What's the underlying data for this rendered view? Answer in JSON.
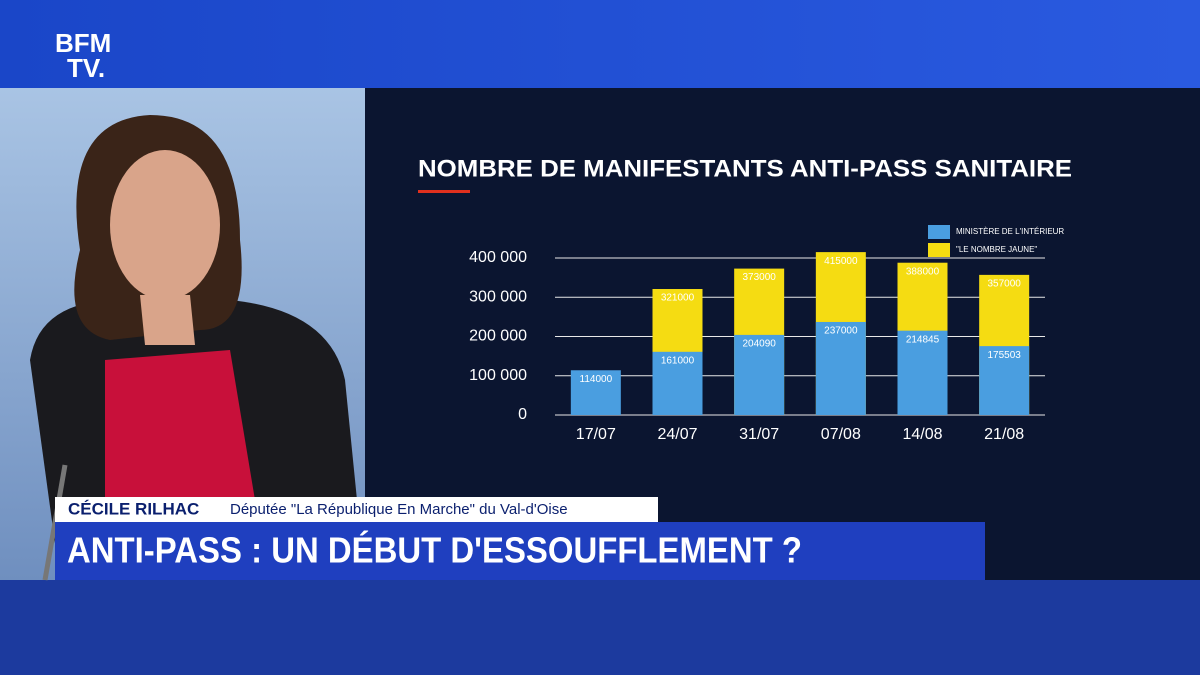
{
  "logo": {
    "line1": "BFM",
    "line2": "TV."
  },
  "lower_third": {
    "name": "CÉCILE RILHAC",
    "role": "Députée \"La République En Marche\" du Val-d'Oise",
    "headline": "ANTI-PASS : UN DÉBUT D'ESSOUFFLEMENT ?"
  },
  "chart_data": {
    "type": "bar",
    "overlap": true,
    "title": "NOMBRE DE MANIFESTANTS ANTI-PASS SANITAIRE",
    "categories": [
      "17/07",
      "24/07",
      "31/07",
      "07/08",
      "14/08",
      "21/08"
    ],
    "series": [
      {
        "name": "MINISTÈRE DE L'INTÉRIEUR",
        "color": "#4a9ee0",
        "values": [
          114000,
          161000,
          204090,
          237000,
          214845,
          175503
        ]
      },
      {
        "name": "\"LE NOMBRE JAUNE\"",
        "color": "#f5dc12",
        "values": [
          null,
          321000,
          373000,
          415000,
          388000,
          357000
        ]
      }
    ],
    "ylim": [
      0,
      400000
    ],
    "yticks": [
      0,
      {
        "value": 100000,
        "label": "100 000"
      },
      {
        "value": 200000,
        "label": "200 000"
      },
      {
        "value": 300000,
        "label": "300 000"
      },
      {
        "value": 400000,
        "label": "400 000"
      }
    ],
    "grid": true,
    "legend": "top-right"
  }
}
